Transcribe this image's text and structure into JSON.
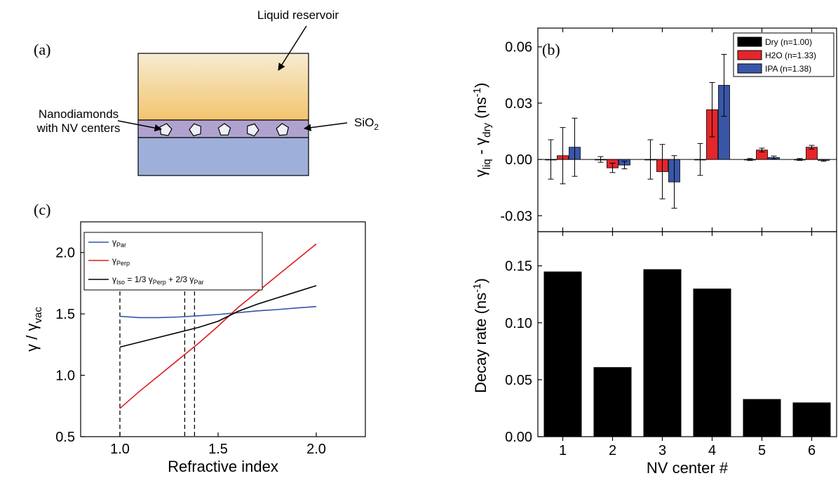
{
  "panel_a": {
    "label": "(a)",
    "reservoir_label": "Liquid reservoir",
    "nd_label_line1": "Nanodiamonds",
    "nd_label_line2": "with NV centers",
    "sio2_label": "SiO",
    "sio2_sub": "2",
    "colors": {
      "liquid_top": "#f6ecd2",
      "liquid_bottom": "#f3c46e",
      "sio2": "#b0a2cf",
      "substrate": "#9eb0da"
    }
  },
  "chart_data": [
    {
      "id": "c",
      "panel_label": "(c)",
      "type": "line",
      "xlabel": "Refractive index",
      "ylabel": "γ / γ",
      "ylabel_sub": "vac",
      "xlim": [
        0.8,
        2.25
      ],
      "ylim": [
        0.5,
        2.25
      ],
      "xticks": [
        "1.0",
        "1.5",
        "2.0"
      ],
      "yticks": [
        "0.5",
        "1.0",
        "1.5",
        "2.0"
      ],
      "legend_position": "top-left",
      "legend_labels": [
        {
          "main": "γ",
          "sub": "Par"
        },
        {
          "main": "γ",
          "sub": "Perp"
        },
        {
          "main": "γ",
          "sub": "Iso",
          "rest": " = 1/3 γ",
          "sub2": "Perp",
          "rest2": " + 2/3 γ",
          "sub3": "Par"
        }
      ],
      "series": [
        {
          "color": "#3355aa",
          "x": [
            1.0,
            1.1,
            1.2,
            1.3,
            1.4,
            1.5,
            1.6,
            1.7,
            1.8,
            1.9,
            2.0
          ],
          "y": [
            1.48,
            1.47,
            1.47,
            1.475,
            1.485,
            1.495,
            1.51,
            1.525,
            1.535,
            1.548,
            1.56
          ]
        },
        {
          "color": "#e01b1b",
          "x": [
            1.0,
            1.1,
            1.2,
            1.3,
            1.4,
            1.5,
            1.6,
            1.7,
            1.8,
            1.9,
            2.0
          ],
          "y": [
            0.73,
            0.87,
            1.0,
            1.13,
            1.26,
            1.4,
            1.55,
            1.68,
            1.81,
            1.94,
            2.07
          ]
        },
        {
          "color": "#000000",
          "x": [
            1.0,
            1.1,
            1.2,
            1.3,
            1.4,
            1.5,
            1.6,
            1.7,
            1.8,
            1.9,
            2.0
          ],
          "y": [
            1.23,
            1.27,
            1.31,
            1.35,
            1.39,
            1.44,
            1.52,
            1.58,
            1.63,
            1.68,
            1.73
          ]
        }
      ],
      "vlines": [
        1.0,
        1.33,
        1.38
      ]
    },
    {
      "id": "b_top",
      "panel_label": "(b)",
      "type": "bar",
      "ylabel_parts": [
        "γ",
        "liq",
        " - γ",
        "dry",
        " (ns",
        "-1",
        ")"
      ],
      "categories": [
        "1",
        "2",
        "3",
        "4",
        "5",
        "6"
      ],
      "ylim": [
        -0.0385,
        0.07
      ],
      "yticks": [
        "-0.03",
        "0.00",
        "0.03",
        "0.06"
      ],
      "legend_position": "top-right",
      "series": [
        {
          "name": "Dry (n=1.00)",
          "color": "#000000",
          "values": [
            0.0,
            0.0,
            0.0,
            0.0,
            0.0,
            0.0
          ],
          "errors": [
            0.0105,
            0.0015,
            0.0105,
            0.0085,
            0.0005,
            0.0005
          ]
        },
        {
          "name": "H2O (n=1.33)",
          "color": "#e5262a",
          "values": [
            0.002,
            -0.0045,
            -0.0065,
            0.0265,
            0.005,
            0.0065
          ],
          "errors": [
            0.015,
            0.0025,
            0.0145,
            0.0145,
            0.001,
            0.001
          ]
        },
        {
          "name": "IPA (n=1.38)",
          "color": "#3a56a8",
          "values": [
            0.0065,
            -0.003,
            -0.012,
            0.0395,
            0.001,
            -0.0005
          ],
          "errors": [
            0.0155,
            0.002,
            0.014,
            0.0165,
            0.0008,
            0.0005
          ]
        }
      ]
    },
    {
      "id": "b_bottom",
      "type": "bar",
      "xlabel": "NV center #",
      "ylabel": "Decay rate (ns",
      "ylabel_sup": "-1",
      "ylabel_end": ")",
      "categories": [
        "1",
        "2",
        "3",
        "4",
        "5",
        "6"
      ],
      "values": [
        0.145,
        0.061,
        0.147,
        0.13,
        0.033,
        0.03
      ],
      "ylim": [
        0.0,
        0.18
      ],
      "yticks": [
        "0.00",
        "0.05",
        "0.10",
        "0.15"
      ],
      "color": "#000000"
    }
  ]
}
